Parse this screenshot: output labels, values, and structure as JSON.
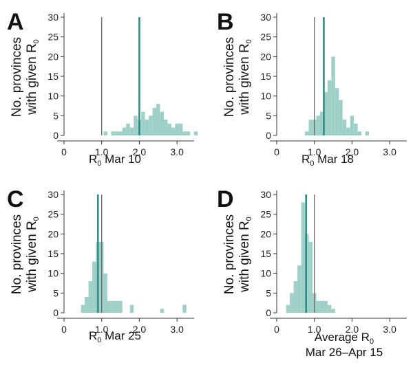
{
  "colors": {
    "bar": "#9fd0c8",
    "estimate_line": "#2a8f86",
    "reference_line": "#666666",
    "axis": "#333333"
  },
  "chart_data": [
    {
      "type": "bar",
      "panel": "A",
      "ylabel_lines": [
        "No. provinces",
        "with given R",
        "0"
      ],
      "xlabel": {
        "main": "R",
        "sub": "0",
        "rest": " Mar 10",
        "line2": ""
      },
      "xlim": [
        0,
        3.6
      ],
      "ylim": [
        0,
        30
      ],
      "xticks": [
        0,
        1.0,
        2.0,
        3.0
      ],
      "xtick_labels": [
        "0",
        "1.0",
        "2.0",
        "3.0"
      ],
      "yticks": [
        0,
        5,
        10,
        15,
        20,
        25,
        30
      ],
      "ytick_labels": [
        "0",
        "5",
        "10",
        "15",
        "20",
        "25",
        "30"
      ],
      "bin_width": 0.1,
      "bins": [
        [
          1.1,
          1
        ],
        [
          1.3,
          1
        ],
        [
          1.4,
          1
        ],
        [
          1.5,
          1
        ],
        [
          1.6,
          2
        ],
        [
          1.7,
          3
        ],
        [
          1.8,
          2
        ],
        [
          1.9,
          5
        ],
        [
          2.0,
          4
        ],
        [
          2.1,
          6
        ],
        [
          2.2,
          4
        ],
        [
          2.3,
          5
        ],
        [
          2.4,
          7
        ],
        [
          2.5,
          8
        ],
        [
          2.6,
          6
        ],
        [
          2.7,
          4
        ],
        [
          2.8,
          3
        ],
        [
          2.9,
          2
        ],
        [
          3.0,
          3
        ],
        [
          3.1,
          3
        ],
        [
          3.2,
          1
        ],
        [
          3.3,
          1
        ],
        [
          3.5,
          1
        ]
      ],
      "estimate_line": 2.0,
      "reference_line": 1.0
    },
    {
      "type": "bar",
      "panel": "B",
      "ylabel_lines": [
        "No. provinces",
        "with given R",
        "0"
      ],
      "xlabel": {
        "main": "R",
        "sub": "0",
        "rest": " Mar 18",
        "line2": ""
      },
      "xlim": [
        0,
        3.6
      ],
      "ylim": [
        0,
        30
      ],
      "xticks": [
        0,
        1.0,
        2.0,
        3.0
      ],
      "xtick_labels": [
        "0",
        "1.0",
        "2.0",
        "3.0"
      ],
      "yticks": [
        0,
        5,
        10,
        15,
        20,
        25,
        30
      ],
      "ytick_labels": [
        "0",
        "5",
        "10",
        "15",
        "20",
        "25",
        "30"
      ],
      "bin_width": 0.1,
      "bins": [
        [
          0.8,
          1
        ],
        [
          0.9,
          4
        ],
        [
          1.0,
          4
        ],
        [
          1.1,
          5
        ],
        [
          1.2,
          6
        ],
        [
          1.3,
          11
        ],
        [
          1.4,
          14
        ],
        [
          1.5,
          20
        ],
        [
          1.6,
          12
        ],
        [
          1.7,
          9
        ],
        [
          1.8,
          4
        ],
        [
          1.9,
          2
        ],
        [
          2.0,
          5
        ],
        [
          2.1,
          3
        ],
        [
          2.2,
          1
        ],
        [
          2.4,
          1
        ]
      ],
      "estimate_line": 1.25,
      "reference_line": 1.0
    },
    {
      "type": "bar",
      "panel": "C",
      "ylabel_lines": [
        "No. provinces",
        "with given R",
        "0"
      ],
      "xlabel": {
        "main": "R",
        "sub": "0",
        "rest": " Mar 25",
        "line2": ""
      },
      "xlim": [
        0,
        3.6
      ],
      "ylim": [
        0,
        30
      ],
      "xticks": [
        0,
        1.0,
        2.0,
        3.0
      ],
      "xtick_labels": [
        "0",
        "1.0",
        "2.0",
        "3.0"
      ],
      "yticks": [
        0,
        5,
        10,
        15,
        20,
        25,
        30
      ],
      "ytick_labels": [
        "0",
        "5",
        "10",
        "15",
        "20",
        "25",
        "30"
      ],
      "bin_width": 0.1,
      "bins": [
        [
          0.5,
          2
        ],
        [
          0.6,
          4
        ],
        [
          0.7,
          8
        ],
        [
          0.8,
          13
        ],
        [
          0.9,
          18
        ],
        [
          1.0,
          18
        ],
        [
          1.1,
          10
        ],
        [
          1.2,
          3
        ],
        [
          1.3,
          3
        ],
        [
          1.4,
          3
        ],
        [
          1.5,
          3
        ],
        [
          1.8,
          2
        ],
        [
          2.6,
          1
        ],
        [
          3.2,
          2
        ]
      ],
      "estimate_line": 0.9,
      "reference_line": 1.0
    },
    {
      "type": "bar",
      "panel": "D",
      "ylabel_lines": [
        "No. provinces",
        "with given R",
        "0"
      ],
      "xlabel": {
        "main": "Average R",
        "sub": "0",
        "rest": "",
        "line2": "Mar 26–Apr 15"
      },
      "xlim": [
        0,
        3.6
      ],
      "ylim": [
        0,
        30
      ],
      "xticks": [
        0,
        1.0,
        2.0,
        3.0
      ],
      "xtick_labels": [
        "0",
        "1.0",
        "2.0",
        "3.0"
      ],
      "yticks": [
        0,
        5,
        10,
        15,
        20,
        25,
        30
      ],
      "ytick_labels": [
        "0",
        "5",
        "10",
        "15",
        "20",
        "25",
        "30"
      ],
      "bin_width": 0.1,
      "bins": [
        [
          0.3,
          2
        ],
        [
          0.4,
          5
        ],
        [
          0.5,
          8
        ],
        [
          0.6,
          12
        ],
        [
          0.7,
          28
        ],
        [
          0.8,
          20
        ],
        [
          0.9,
          18
        ],
        [
          1.0,
          5
        ],
        [
          1.1,
          3
        ],
        [
          1.2,
          3
        ],
        [
          1.3,
          3
        ],
        [
          1.4,
          2
        ],
        [
          1.5,
          1
        ]
      ],
      "estimate_line": 0.78,
      "reference_line": 1.0
    }
  ]
}
